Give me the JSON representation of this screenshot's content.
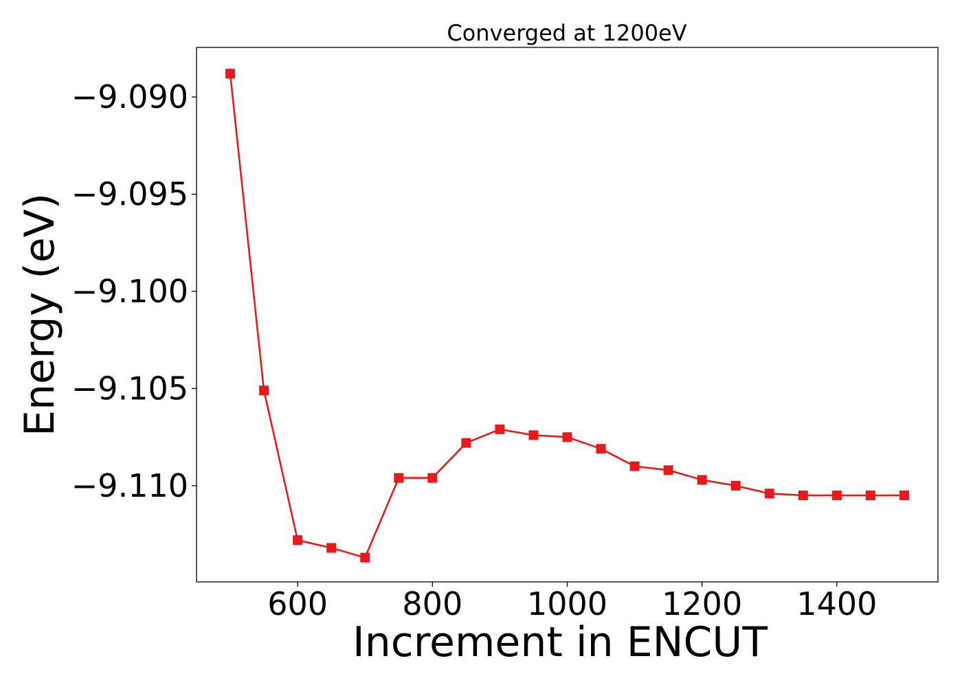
{
  "chart_data": {
    "type": "line",
    "title": "Converged at 1200eV",
    "xlabel": "Increment in ENCUT",
    "ylabel": "Energy (eV)",
    "xlim": [
      450,
      1550
    ],
    "ylim": [
      -9.11495,
      -9.08745
    ],
    "x_ticks": [
      600,
      800,
      1000,
      1200,
      1400
    ],
    "x_tick_labels": [
      "600",
      "800",
      "1000",
      "1200",
      "1400"
    ],
    "y_ticks": [
      -9.09,
      -9.095,
      -9.1,
      -9.105,
      -9.11
    ],
    "y_tick_labels": [
      "−9.090",
      "−9.095",
      "−9.100",
      "−9.105",
      "−9.110"
    ],
    "grid": false,
    "series": [
      {
        "color": "#e41a1c",
        "marker": "square",
        "x": [
          500,
          550,
          600,
          650,
          700,
          750,
          800,
          850,
          900,
          950,
          1000,
          1050,
          1100,
          1150,
          1200,
          1250,
          1300,
          1350,
          1400,
          1450,
          1500
        ],
        "y": [
          -9.0888,
          -9.1051,
          -9.1128,
          -9.1132,
          -9.1137,
          -9.1096,
          -9.1096,
          -9.1078,
          -9.1071,
          -9.1074,
          -9.1075,
          -9.1081,
          -9.109,
          -9.1092,
          -9.1097,
          -9.11,
          -9.1104,
          -9.1105,
          -9.1105,
          -9.1105,
          -9.1105
        ]
      }
    ]
  }
}
